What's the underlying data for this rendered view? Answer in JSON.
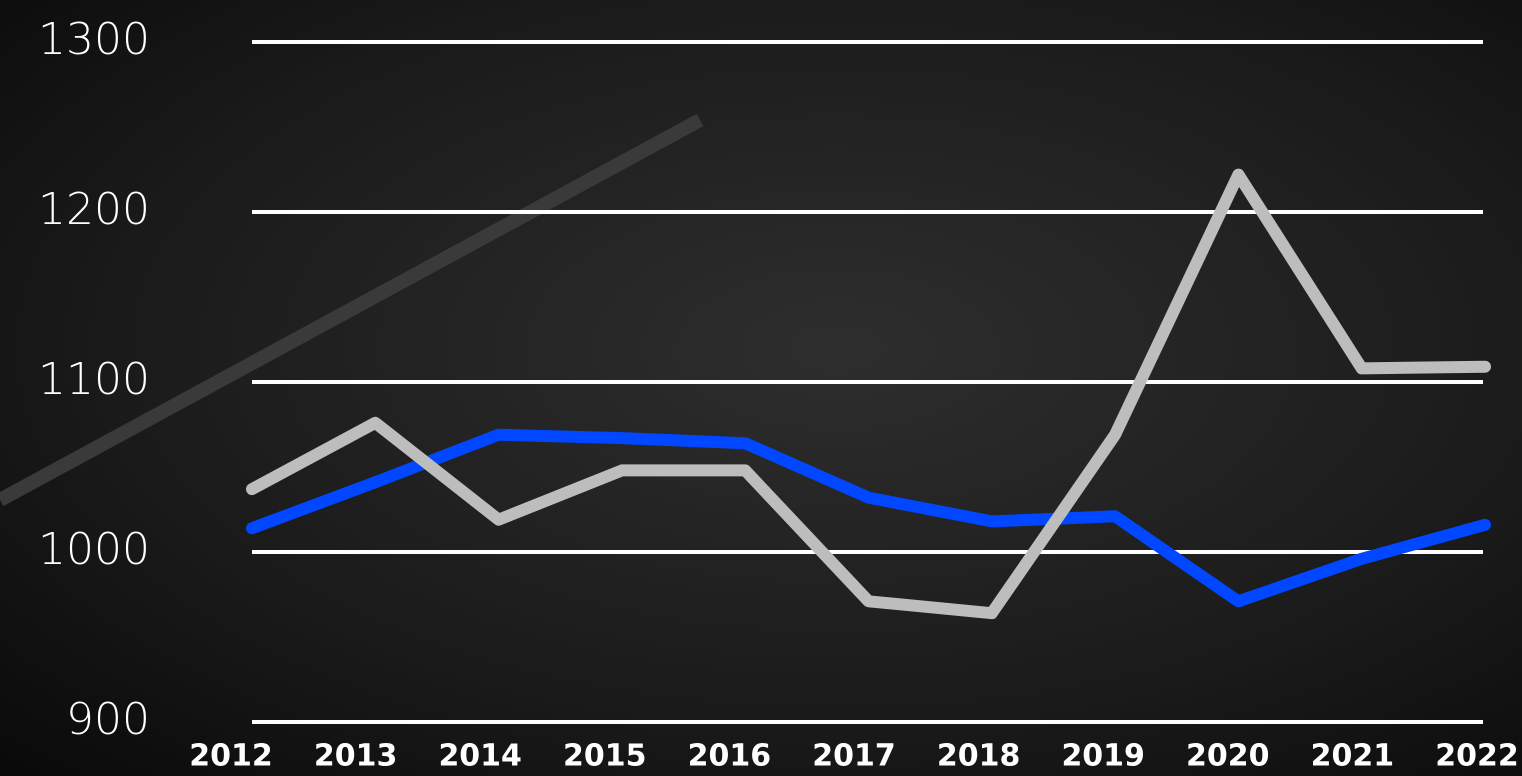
{
  "chart_data": {
    "type": "line",
    "categories": [
      "2012",
      "2013",
      "2014",
      "2015",
      "2016",
      "2017",
      "2018",
      "2019",
      "2020",
      "2021",
      "2022"
    ],
    "series": [
      {
        "color": "#0047ff",
        "values": [
          1014,
          1041,
          1069,
          1067,
          1064,
          1032,
          1018,
          1021,
          971,
          996,
          1016
        ]
      },
      {
        "color": "#bdbdbd",
        "values": [
          1037,
          1076,
          1019,
          1048,
          1048,
          971,
          964,
          1069,
          1222,
          1108,
          1109
        ]
      }
    ],
    "ylim": [
      900,
      1300
    ],
    "yticks": [
      900,
      1000,
      1100,
      1200,
      1300
    ],
    "grid": true
  }
}
